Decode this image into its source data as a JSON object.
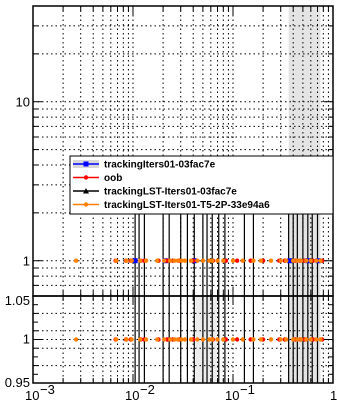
{
  "chart_data": [
    {
      "panel": "upper",
      "type": "scatter",
      "xscale": "log",
      "yscale": "log",
      "xlim": [
        0.001,
        1
      ],
      "ylim": [
        0.6,
        40
      ],
      "y_tick_labels": [
        "1",
        "10"
      ],
      "grid": true,
      "legend_position": "middle-right",
      "series": [
        {
          "name": "trackingIters01-03fac7e",
          "color": "#0000ff",
          "marker": "square",
          "x": [
            0.0105,
            0.021,
            0.041,
            0.37,
            0.56,
            0.71
          ],
          "y": [
            1,
            1,
            1,
            1,
            1,
            1
          ]
        },
        {
          "name": "oob",
          "color": "#ff0000",
          "marker": "circle",
          "x": [
            0.0067,
            0.0085,
            0.0095,
            0.012,
            0.013,
            0.018,
            0.022,
            0.025,
            0.029,
            0.04,
            0.063,
            0.085,
            0.11,
            0.15,
            0.2,
            0.29,
            0.33,
            0.42,
            0.47,
            0.52,
            0.63,
            0.78
          ],
          "y": [
            1,
            1,
            1,
            1,
            1,
            1,
            1,
            1,
            1,
            1,
            1,
            1,
            1,
            1,
            1,
            1,
            1,
            1,
            1,
            1,
            1,
            1
          ]
        },
        {
          "name": "trackingLST-Iters01-03fac7e",
          "color": "#000000",
          "marker": "triangle",
          "x": [],
          "y": []
        },
        {
          "name": "trackingLST-Iters01-T5-2P-33e94a6",
          "color": "#ff8000",
          "marker": "circle",
          "x": [
            0.0027,
            0.0068,
            0.0086,
            0.0097,
            0.0118,
            0.0135,
            0.0175,
            0.0205,
            0.0235,
            0.026,
            0.028,
            0.0305,
            0.033,
            0.038,
            0.044,
            0.05,
            0.058,
            0.062,
            0.07,
            0.08,
            0.1,
            0.125,
            0.16,
            0.19,
            0.24,
            0.3,
            0.34,
            0.4,
            0.44,
            0.48,
            0.54,
            0.6,
            0.68,
            0.75
          ],
          "y": [
            1,
            1,
            1,
            1,
            1,
            1,
            1,
            1,
            1,
            1,
            1,
            1,
            1,
            1,
            1,
            1,
            1,
            1,
            1,
            1,
            1,
            1,
            1,
            1,
            1,
            1,
            1,
            1,
            1,
            1,
            1,
            1,
            1,
            1
          ]
        }
      ]
    },
    {
      "panel": "ratio",
      "type": "scatter",
      "xscale": "log",
      "xlim": [
        0.001,
        1
      ],
      "ylim": [
        0.95,
        1.05
      ],
      "y_tick_labels": [
        "0.95",
        "1",
        "1.05"
      ],
      "x_tick_labels": [
        "10",
        "10",
        "10",
        "1"
      ],
      "x_tick_exponents": [
        "−3",
        "−2",
        "−1",
        ""
      ],
      "grid": true,
      "series": [
        {
          "name": "oob",
          "color": "#ff0000",
          "marker": "circle",
          "x": [
            0.0067,
            0.0085,
            0.0095,
            0.012,
            0.013,
            0.018,
            0.022,
            0.025,
            0.029,
            0.04,
            0.063,
            0.085,
            0.11,
            0.15,
            0.2,
            0.29,
            0.33,
            0.42,
            0.47,
            0.52,
            0.63,
            0.78
          ],
          "y": [
            1,
            1,
            1,
            1,
            1,
            1,
            1,
            1,
            1,
            1,
            1,
            1,
            1,
            1,
            1,
            1,
            1,
            1,
            1,
            1,
            1,
            1
          ]
        },
        {
          "name": "trackingLST-Iters01-T5-2P-33e94a6",
          "color": "#ff8000",
          "marker": "circle",
          "x": [
            0.0027,
            0.0068,
            0.0086,
            0.0097,
            0.0118,
            0.0135,
            0.0175,
            0.0205,
            0.0235,
            0.026,
            0.028,
            0.0305,
            0.033,
            0.038,
            0.044,
            0.05,
            0.058,
            0.062,
            0.07,
            0.08,
            0.1,
            0.125,
            0.16,
            0.19,
            0.24,
            0.3,
            0.34,
            0.4,
            0.44,
            0.48,
            0.54,
            0.6,
            0.68,
            0.75
          ],
          "y": [
            1,
            1,
            1,
            1,
            1,
            1,
            1,
            1,
            1,
            1,
            1,
            1,
            1,
            1,
            1,
            1,
            1,
            1,
            1,
            1,
            1,
            1,
            1,
            1,
            1,
            1,
            1,
            1,
            1,
            1,
            1,
            1,
            1,
            1
          ]
        }
      ]
    }
  ]
}
